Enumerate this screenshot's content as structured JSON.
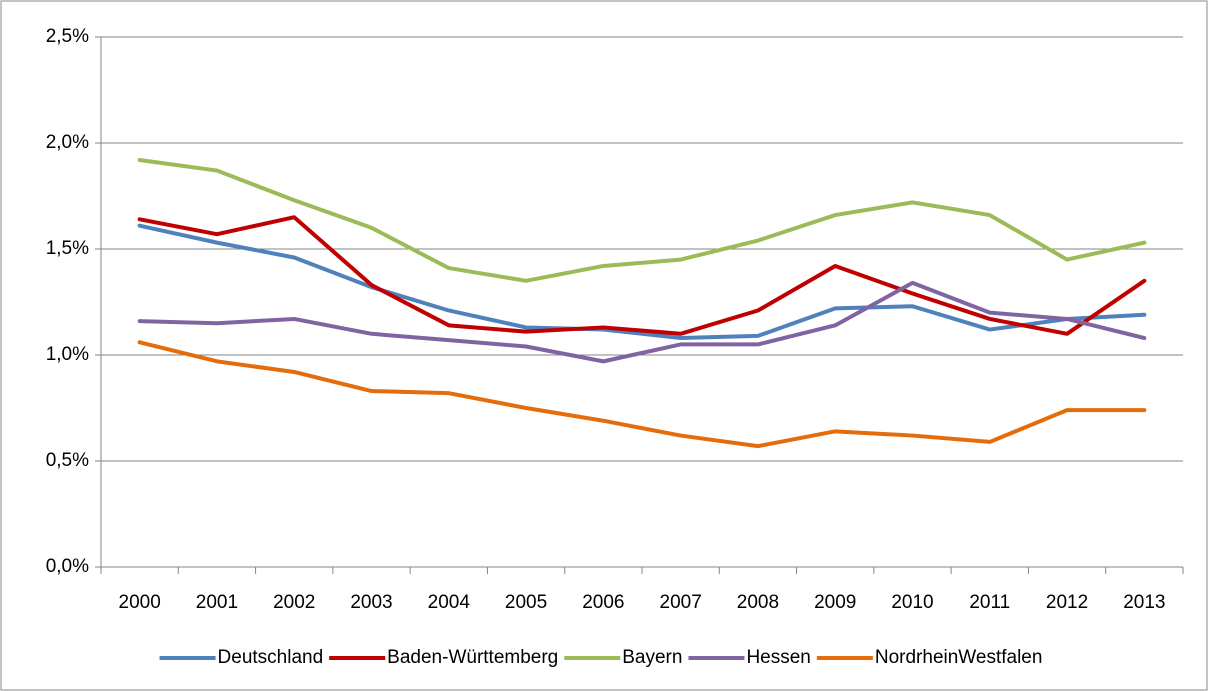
{
  "chart_data": {
    "type": "line",
    "categories": [
      "2000",
      "2001",
      "2002",
      "2003",
      "2004",
      "2005",
      "2006",
      "2007",
      "2008",
      "2009",
      "2010",
      "2011",
      "2012",
      "2013"
    ],
    "series": [
      {
        "name": "Deutschland",
        "color": "#4f81bd",
        "values": [
          1.61,
          1.53,
          1.46,
          1.32,
          1.21,
          1.13,
          1.12,
          1.08,
          1.09,
          1.22,
          1.23,
          1.12,
          1.17,
          1.19
        ]
      },
      {
        "name": "Baden-Württemberg",
        "color": "#c00000",
        "values": [
          1.64,
          1.57,
          1.65,
          1.33,
          1.14,
          1.11,
          1.13,
          1.1,
          1.21,
          1.42,
          1.29,
          1.17,
          1.1,
          1.35
        ]
      },
      {
        "name": "Bayern",
        "color": "#9bbb59",
        "values": [
          1.92,
          1.87,
          1.73,
          1.6,
          1.41,
          1.35,
          1.42,
          1.45,
          1.54,
          1.66,
          1.72,
          1.66,
          1.45,
          1.53
        ]
      },
      {
        "name": "Hessen",
        "color": "#8064a2",
        "values": [
          1.16,
          1.15,
          1.17,
          1.1,
          1.07,
          1.04,
          0.97,
          1.05,
          1.05,
          1.14,
          1.34,
          1.2,
          1.17,
          1.08
        ]
      },
      {
        "name": "NordrheinWestfalen",
        "color": "#e46c0a",
        "values": [
          1.06,
          0.97,
          0.92,
          0.83,
          0.82,
          0.75,
          0.69,
          0.62,
          0.57,
          0.64,
          0.62,
          0.59,
          0.74,
          0.74
        ]
      }
    ],
    "ylim": [
      0,
      2.5
    ],
    "yticks": [
      {
        "value": 0,
        "label": "0,0%"
      },
      {
        "value": 0.5,
        "label": "0,5%"
      },
      {
        "value": 1,
        "label": "1,0%"
      },
      {
        "value": 1.5,
        "label": "1,5%"
      },
      {
        "value": 2,
        "label": "2,0%"
      },
      {
        "value": 2.5,
        "label": "2,5%"
      }
    ],
    "grid": true,
    "legend": "bottom"
  }
}
